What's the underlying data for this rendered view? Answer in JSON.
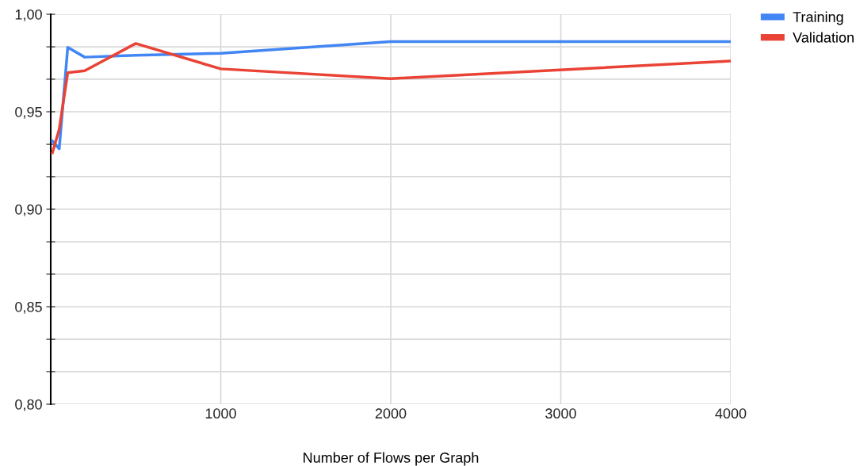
{
  "chart_data": {
    "type": "line",
    "xlabel": "Number of Flows per Graph",
    "x": [
      10,
      50,
      100,
      200,
      500,
      1000,
      2000,
      4000
    ],
    "series": [
      {
        "name": "Training",
        "color": "#4285f4",
        "values": [
          0.935,
          0.931,
          0.983,
          0.978,
          0.979,
          0.98,
          0.986,
          0.986
        ]
      },
      {
        "name": "Validation",
        "color": "#ea4335",
        "values": [
          0.929,
          0.941,
          0.97,
          0.971,
          0.985,
          0.972,
          0.967,
          0.976
        ]
      }
    ],
    "xlim": [
      0,
      4000
    ],
    "xticks": [
      1000,
      2000,
      3000,
      4000
    ],
    "ylim": [
      0.8,
      1.0
    ],
    "yticks": [
      {
        "value": 0.8,
        "label": "0,80"
      },
      {
        "value": 0.8167,
        "label": null
      },
      {
        "value": 0.8333,
        "label": null
      },
      {
        "value": 0.85,
        "label": "0,85"
      },
      {
        "value": 0.8667,
        "label": null
      },
      {
        "value": 0.8833,
        "label": null
      },
      {
        "value": 0.9,
        "label": "0,90"
      },
      {
        "value": 0.9167,
        "label": null
      },
      {
        "value": 0.9333,
        "label": null
      },
      {
        "value": 0.95,
        "label": "0,95"
      },
      {
        "value": 0.9667,
        "label": null
      },
      {
        "value": 0.9833,
        "label": null
      },
      {
        "value": 1.0,
        "label": "1,00"
      }
    ],
    "grid": true,
    "legend": "top right",
    "marker": "none",
    "line_style": "solid"
  }
}
